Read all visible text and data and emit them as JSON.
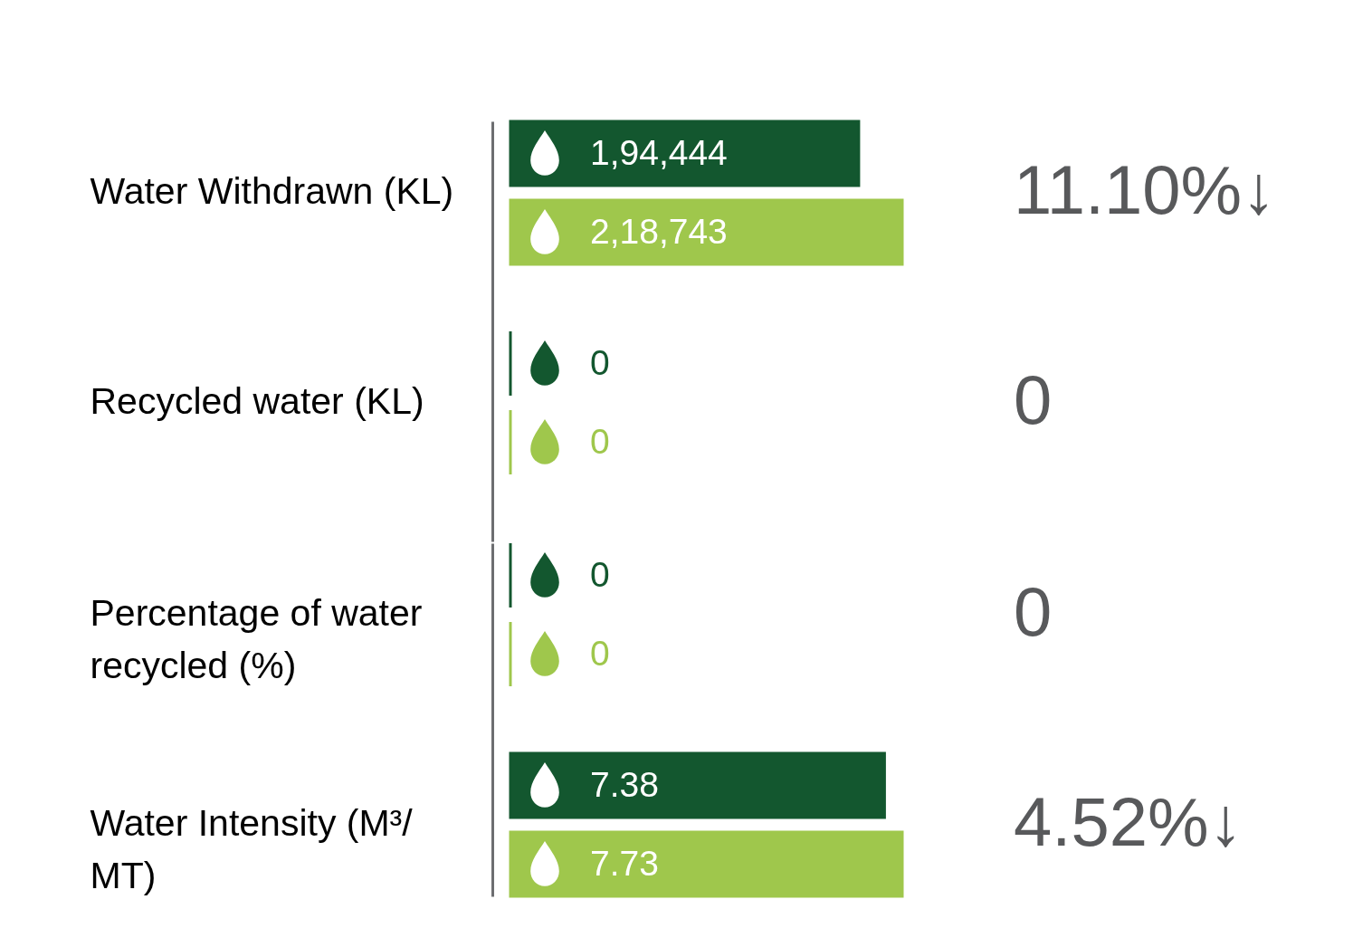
{
  "chart_data": [
    {
      "type": "bar",
      "orientation": "horizontal",
      "categories": [
        "Water Withdrawn  (KL)",
        "Recycled water (KL)"
      ],
      "series": [
        {
          "color": "#13572f",
          "values": [
            194444,
            0
          ],
          "value_labels": [
            "1,94,444",
            "0"
          ]
        },
        {
          "color": "#9fc74c",
          "values": [
            218743,
            0
          ],
          "value_labels": [
            "2,18,743",
            "0"
          ]
        }
      ],
      "annotations": [
        "11.10%↓",
        "0"
      ],
      "tick_labels": "y"
    },
    {
      "type": "bar",
      "orientation": "horizontal",
      "categories": [
        "Percentage of water recycled (%)",
        "Water Intensity (M³/ MT)"
      ],
      "series": [
        {
          "color": "#13572f",
          "values": [
            0,
            7.38
          ],
          "value_labels": [
            "0",
            "7.38"
          ]
        },
        {
          "color": "#9fc74c",
          "values": [
            0,
            7.73
          ],
          "value_labels": [
            "0",
            "7.73"
          ]
        }
      ],
      "annotations": [
        "0",
        "4.52%↓"
      ],
      "tick_labels": "y"
    }
  ]
}
